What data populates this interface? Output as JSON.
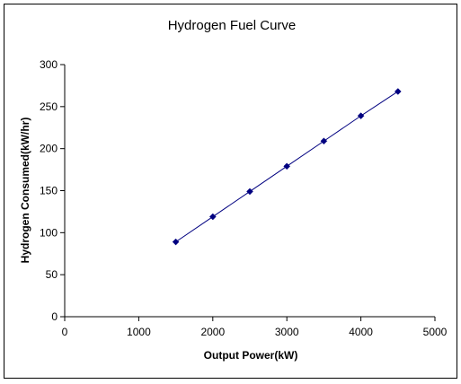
{
  "chart_data": {
    "type": "scatter",
    "title": "Hydrogen Fuel Curve",
    "xlabel": "Output Power(kW)",
    "ylabel": "Hydrogen Consumed(kW/hr)",
    "xlim": [
      0,
      5000
    ],
    "ylim": [
      0,
      300
    ],
    "xticks": [
      "0",
      "1000",
      "2000",
      "3000",
      "4000",
      "5000"
    ],
    "yticks": [
      "0",
      "50",
      "100",
      "150",
      "200",
      "250",
      "300"
    ],
    "series": [
      {
        "x": [
          1500,
          2000,
          2500,
          3000,
          3500,
          4000,
          4500
        ],
        "y": [
          89,
          119,
          149,
          179,
          209,
          239,
          268
        ],
        "color": "#000080",
        "line": true,
        "marker": "diamond"
      }
    ],
    "grid": false,
    "legend": false
  }
}
